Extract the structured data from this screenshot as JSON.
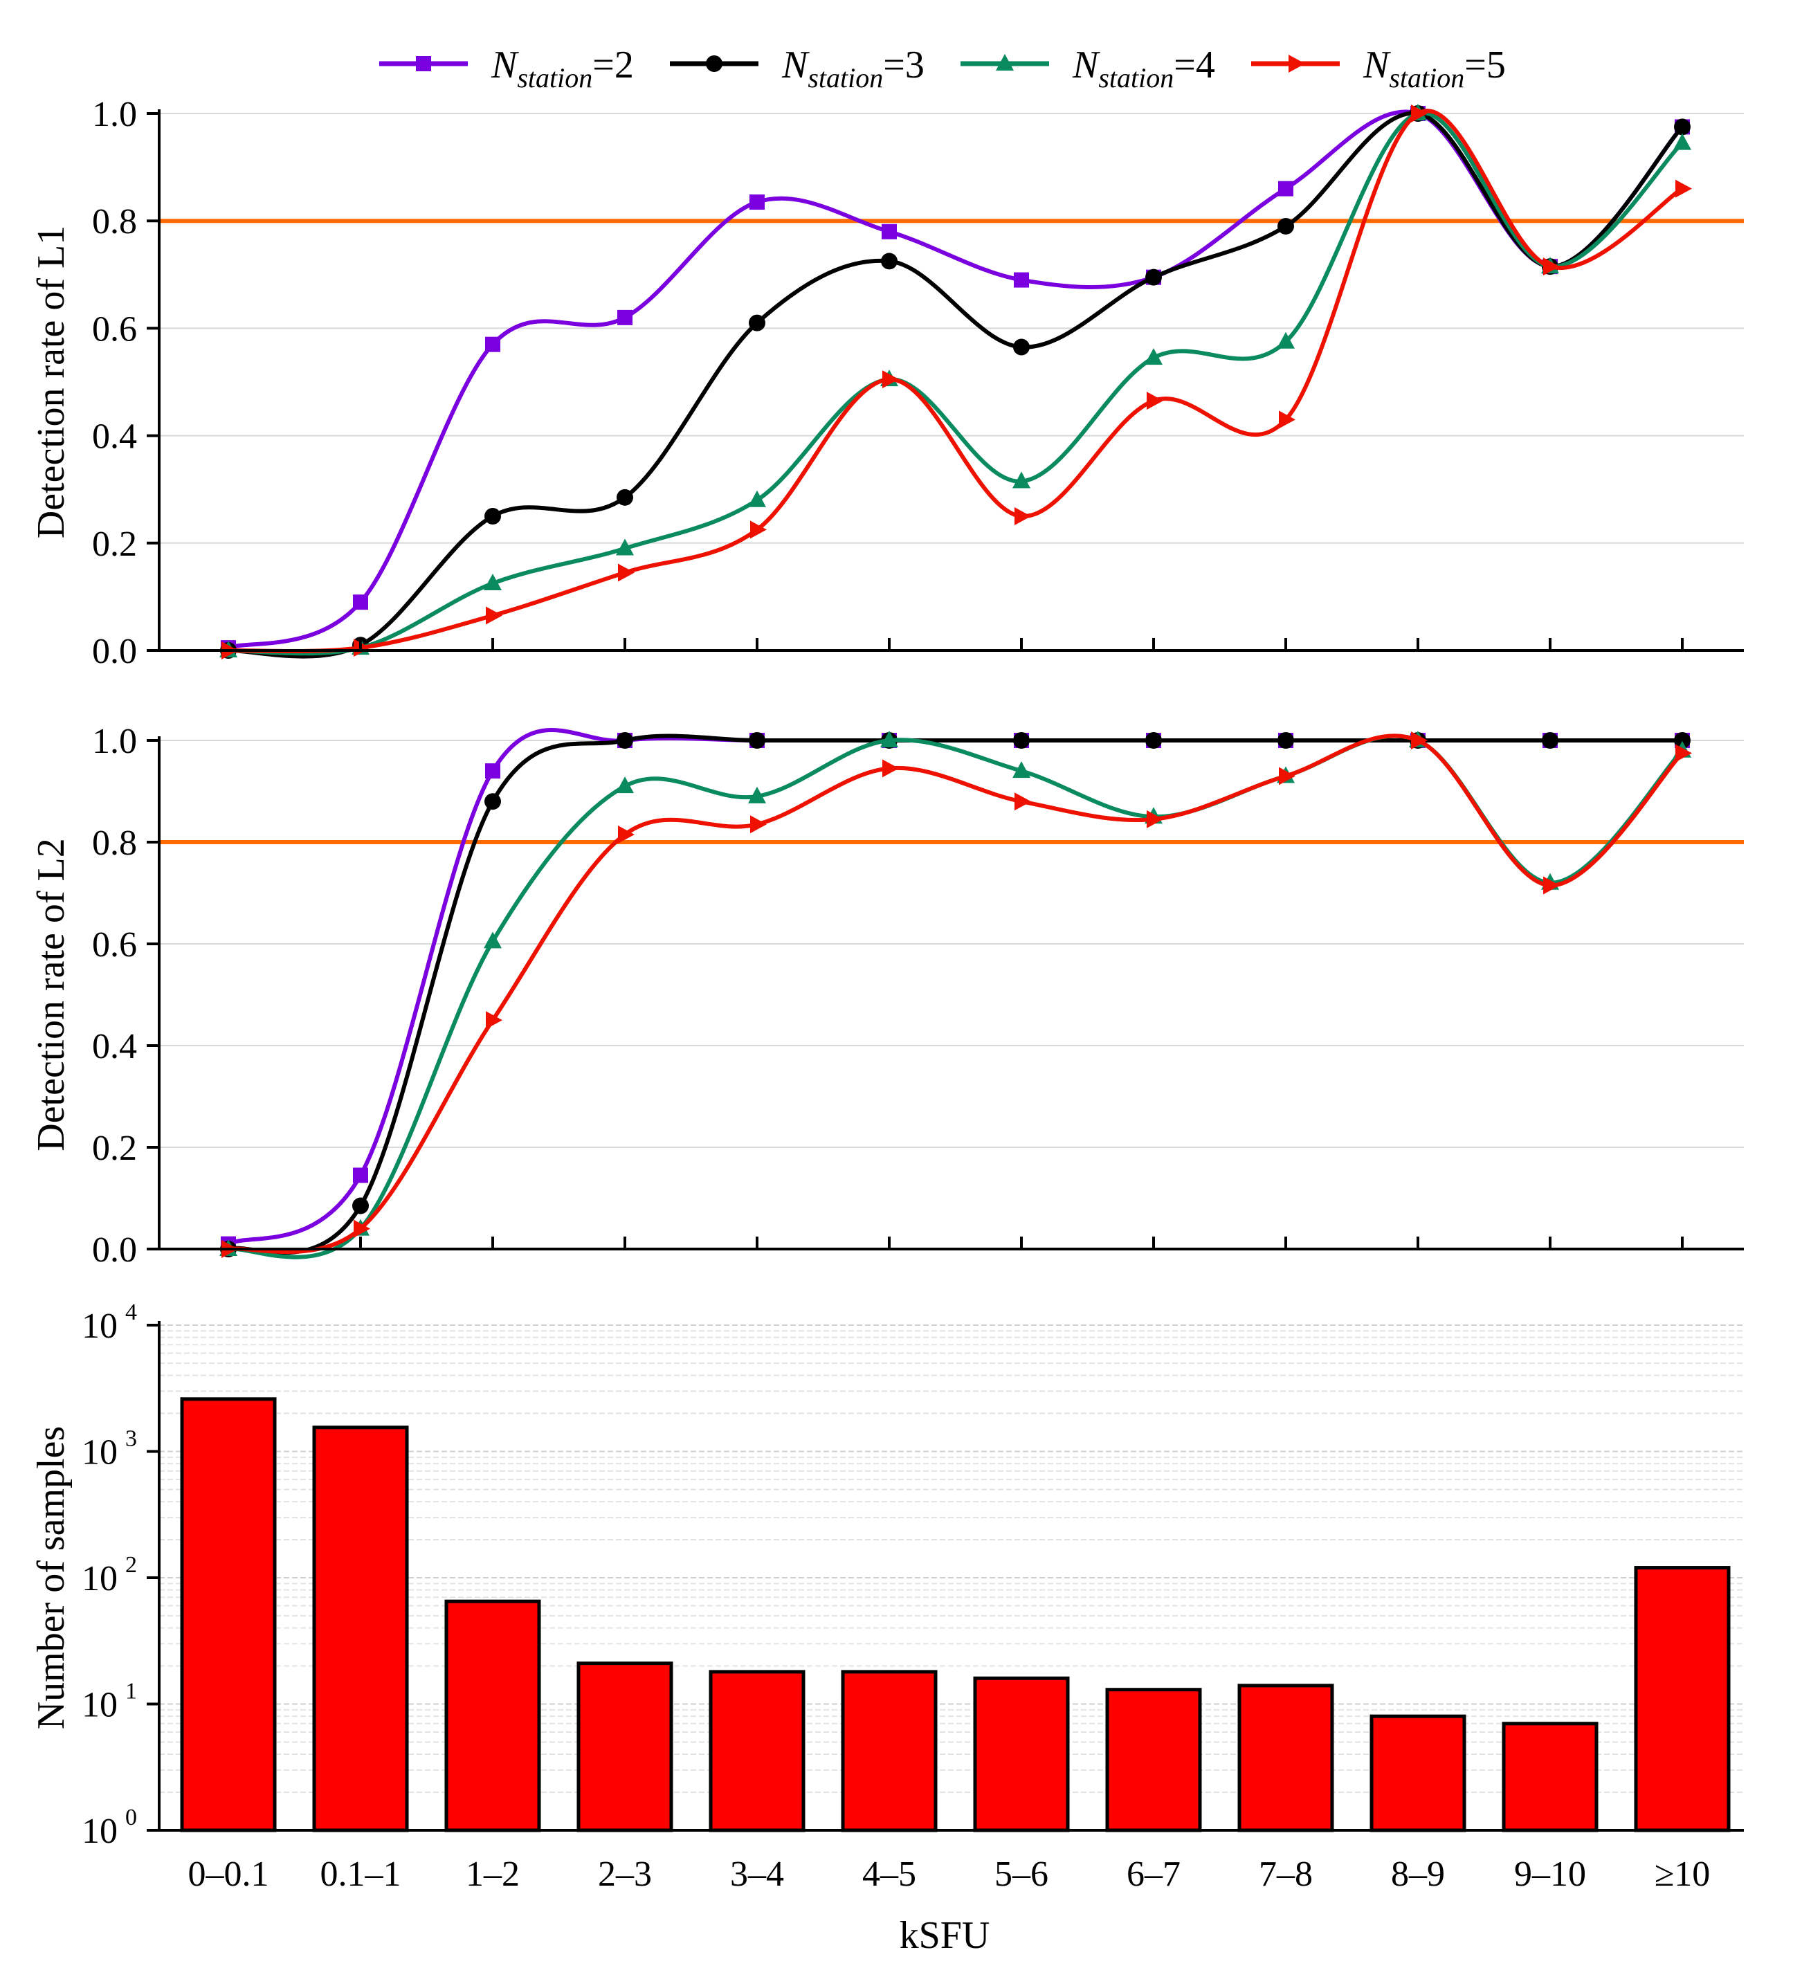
{
  "chart_data": [
    {
      "type": "line",
      "panel": "top",
      "ylabel": "Detection rate of L1",
      "xlabel": "",
      "ylim": [
        0,
        1.0
      ],
      "yticks": [
        "0.0",
        "0.2",
        "0.4",
        "0.6",
        "0.8",
        "1.0"
      ],
      "threshold": 0.8,
      "categories": [
        "0–0.1",
        "0.1–1",
        "1–2",
        "2–3",
        "3–4",
        "4–5",
        "5–6",
        "6–7",
        "7–8",
        "8–9",
        "9–10",
        "≥10"
      ],
      "series": [
        {
          "name": "N_station=2",
          "values": [
            0.005,
            0.09,
            0.57,
            0.62,
            0.835,
            0.78,
            0.69,
            0.695,
            0.86,
            1.0,
            0.715,
            0.975
          ]
        },
        {
          "name": "N_station=3",
          "values": [
            0.0,
            0.01,
            0.25,
            0.285,
            0.61,
            0.725,
            0.565,
            0.695,
            0.79,
            1.0,
            0.715,
            0.975
          ]
        },
        {
          "name": "N_station=4",
          "values": [
            0.0,
            0.005,
            0.125,
            0.19,
            0.28,
            0.505,
            0.315,
            0.545,
            0.575,
            1.0,
            0.715,
            0.945
          ]
        },
        {
          "name": "N_station=5",
          "values": [
            0.0,
            0.005,
            0.065,
            0.145,
            0.225,
            0.505,
            0.25,
            0.465,
            0.43,
            1.0,
            0.715,
            0.86
          ]
        }
      ]
    },
    {
      "type": "line",
      "panel": "middle",
      "ylabel": "Detection rate of L2",
      "xlabel": "",
      "ylim": [
        0,
        1.0
      ],
      "yticks": [
        "0.0",
        "0.2",
        "0.4",
        "0.6",
        "0.8",
        "1.0"
      ],
      "threshold": 0.8,
      "categories": [
        "0–0.1",
        "0.1–1",
        "1–2",
        "2–3",
        "3–4",
        "4–5",
        "5–6",
        "6–7",
        "7–8",
        "8–9",
        "9–10",
        "≥10"
      ],
      "series": [
        {
          "name": "N_station=2",
          "values": [
            0.01,
            0.145,
            0.94,
            1.0,
            1.0,
            1.0,
            1.0,
            1.0,
            1.0,
            1.0,
            1.0,
            1.0
          ]
        },
        {
          "name": "N_station=3",
          "values": [
            0.0,
            0.085,
            0.88,
            1.0,
            1.0,
            1.0,
            1.0,
            1.0,
            1.0,
            1.0,
            1.0,
            1.0
          ]
        },
        {
          "name": "N_station=4",
          "values": [
            0.0,
            0.04,
            0.605,
            0.91,
            0.89,
            1.0,
            0.94,
            0.85,
            0.93,
            1.0,
            0.72,
            0.98
          ]
        },
        {
          "name": "N_station=5",
          "values": [
            0.0,
            0.04,
            0.45,
            0.815,
            0.835,
            0.945,
            0.88,
            0.845,
            0.93,
            1.0,
            0.715,
            0.975
          ]
        }
      ]
    },
    {
      "type": "bar",
      "panel": "bottom",
      "yscale": "log",
      "ylabel": "Number of samples",
      "xlabel": "kSFU",
      "ylim": [
        1,
        10000
      ],
      "ytick_bases": [
        "10",
        "10",
        "10",
        "10",
        "10"
      ],
      "ytick_exponents": [
        "0",
        "1",
        "2",
        "3",
        "4"
      ],
      "categories": [
        "0–0.1",
        "0.1–1",
        "1–2",
        "2–3",
        "3–4",
        "4–5",
        "5–6",
        "6–7",
        "7–8",
        "8–9",
        "9–10",
        "≥10"
      ],
      "values": [
        2600,
        1550,
        65,
        21,
        18,
        18,
        16,
        13,
        14,
        8,
        7,
        120
      ]
    }
  ],
  "legend": [
    {
      "prefix": "N",
      "sub": "station",
      "suffix": "=2",
      "color": "#7B00E0",
      "marker": "square"
    },
    {
      "prefix": "N",
      "sub": "station",
      "suffix": "=3",
      "color": "#000000",
      "marker": "circle"
    },
    {
      "prefix": "N",
      "sub": "station",
      "suffix": "=4",
      "color": "#0A8A5F",
      "marker": "triangle-up"
    },
    {
      "prefix": "N",
      "sub": "station",
      "suffix": "=5",
      "color": "#EE1100",
      "marker": "triangle-right"
    }
  ],
  "colors": {
    "threshold": "#FF6A00",
    "bar_fill": "#FF0000",
    "grid": "#D8D8D8"
  }
}
